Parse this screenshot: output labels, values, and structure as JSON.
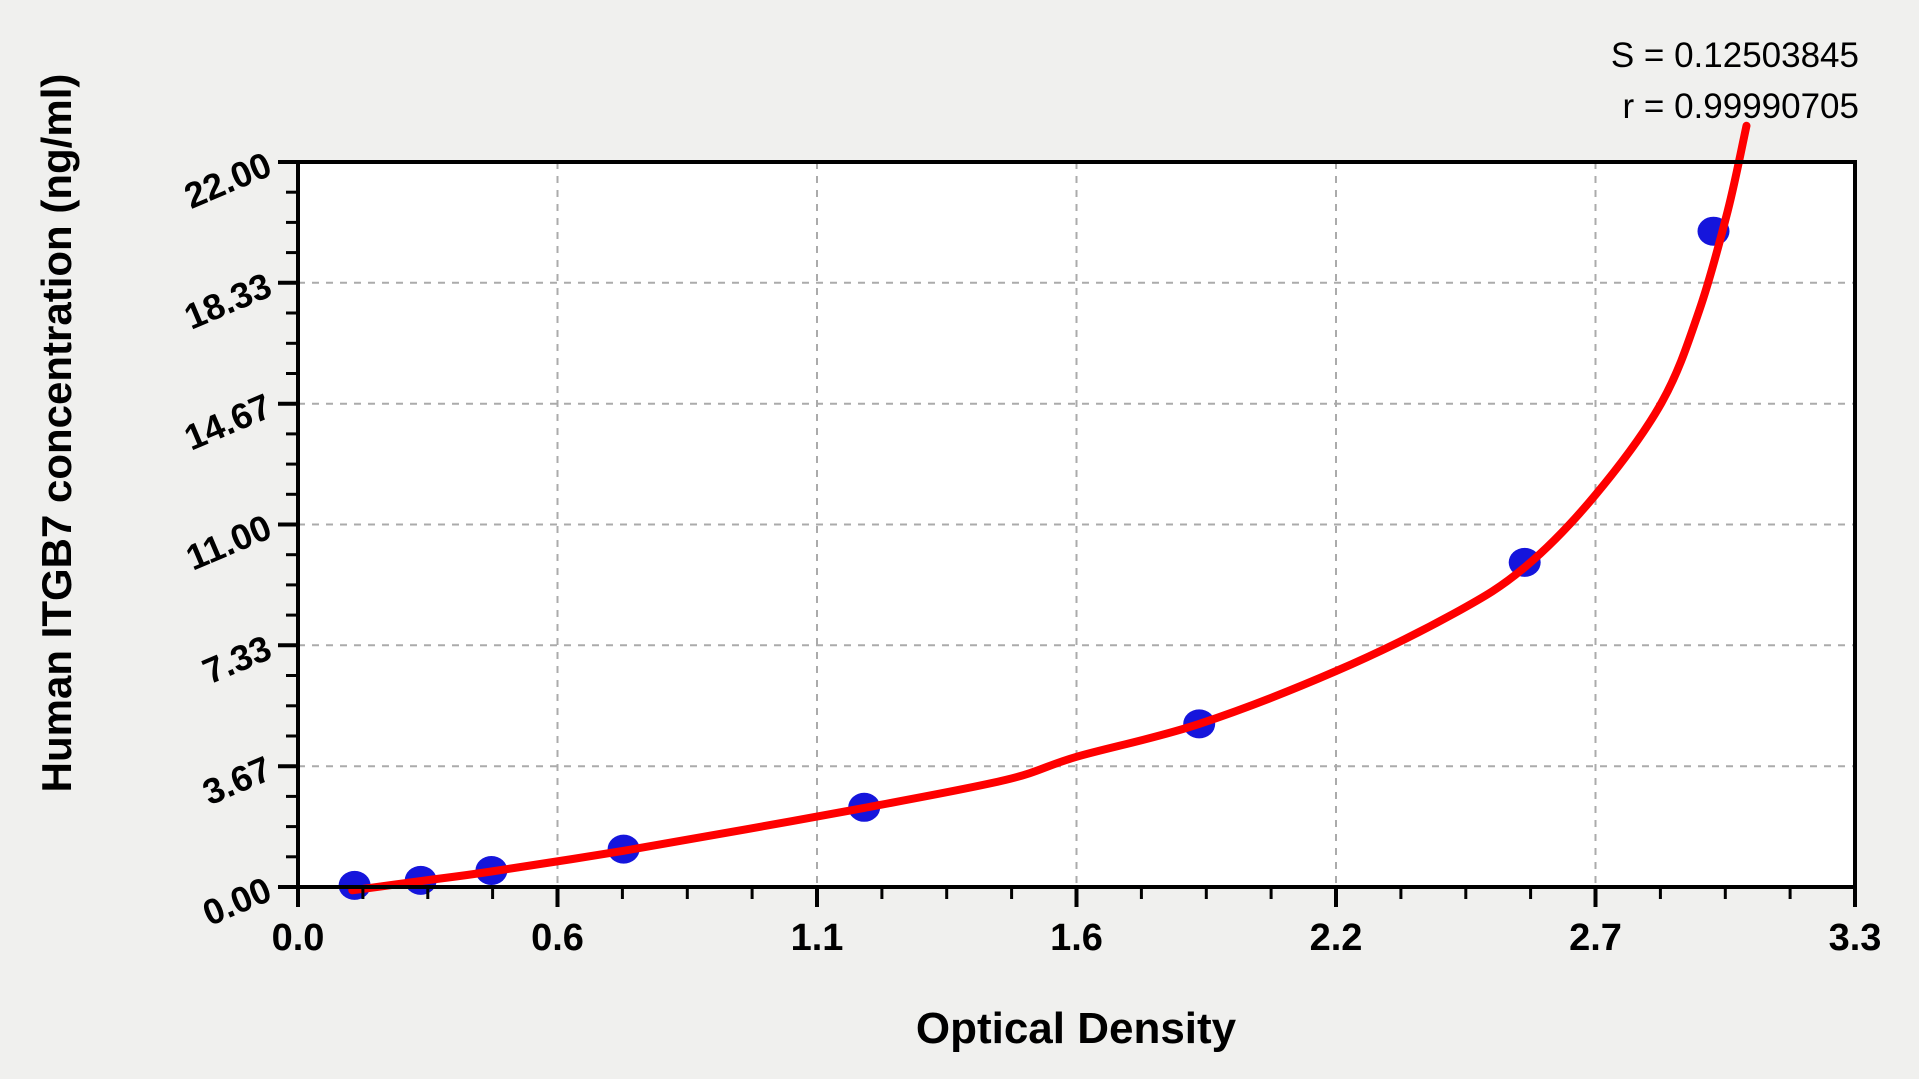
{
  "colors": {
    "background": "#f0f0ee",
    "plot_background": "#ffffff",
    "grid": "#ababab",
    "axis": "#000000",
    "curve": "#fe0000",
    "marker": "#1515dc"
  },
  "chart_data": {
    "type": "scatter",
    "title": "",
    "xlabel": "Optical Density",
    "ylabel": "Human ITGB7 concentration (ng/ml)",
    "xlim": [
      0,
      3.3
    ],
    "ylim": [
      0,
      22
    ],
    "x_tick_labels": [
      "0.0",
      "0.6",
      "1.1",
      "1.6",
      "2.2",
      "2.7",
      "3.3"
    ],
    "y_tick_labels": [
      "0.00",
      "3.67",
      "7.33",
      "11.00",
      "14.67",
      "18.33",
      "22.00"
    ],
    "x_minor_divisions": 4,
    "y_minor_divisions": 4,
    "grid": {
      "show": true,
      "style": "dashed",
      "at": "major-ticks"
    },
    "legend": "none",
    "series": [
      {
        "name": "standard-points",
        "type": "scatter",
        "color": "#1515dc",
        "points": [
          [
            0.12,
            0.05
          ],
          [
            0.26,
            0.2
          ],
          [
            0.41,
            0.5
          ],
          [
            0.69,
            1.15
          ],
          [
            1.2,
            2.42
          ],
          [
            1.91,
            4.95
          ],
          [
            2.6,
            9.85
          ],
          [
            3.0,
            19.9
          ]
        ]
      },
      {
        "name": "fitted-curve",
        "type": "line",
        "color": "#fe0000",
        "points": [
          [
            0.115,
            -0.1
          ],
          [
            0.26,
            0.18
          ],
          [
            0.41,
            0.47
          ],
          [
            0.69,
            1.1
          ],
          [
            0.95,
            1.75
          ],
          [
            1.2,
            2.4
          ],
          [
            1.5,
            3.25
          ],
          [
            1.65,
            3.95
          ],
          [
            1.91,
            4.95
          ],
          [
            2.2,
            6.55
          ],
          [
            2.45,
            8.3
          ],
          [
            2.6,
            9.7
          ],
          [
            2.75,
            11.9
          ],
          [
            2.89,
            14.7
          ],
          [
            2.97,
            17.5
          ],
          [
            3.03,
            20.5
          ],
          [
            3.07,
            23.1
          ]
        ]
      }
    ],
    "annotations": {
      "s_line": "S = 0.12503845",
      "r_line": "r = 0.99990705"
    }
  }
}
